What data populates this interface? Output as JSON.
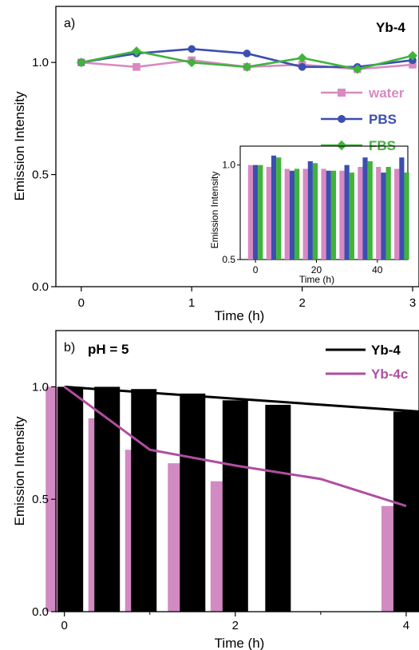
{
  "colors": {
    "water": "#d889c2",
    "pbs": "#3b4fb0",
    "fbs": "#3fb43b",
    "yb4": "#000000",
    "yb4c_line": "#b04ea0",
    "yb4c_bar": "#d28ac3"
  },
  "chart_data": [
    {
      "type": "line",
      "panel_label": "a)",
      "title": "Yb-4",
      "xlabel": "Time (h)",
      "ylabel": "Emission Intensity",
      "xlim": [
        -0.1,
        3.0
      ],
      "ylim": [
        0.0,
        1.25
      ],
      "xticks": [
        "0",
        "1",
        "2",
        "3"
      ],
      "yticks": [
        "0.0",
        "0.5",
        "1.0"
      ],
      "x": [
        0,
        0.5,
        1,
        1.5,
        2,
        2.5,
        3
      ],
      "series": [
        {
          "name": "water",
          "color_key": "water",
          "marker": "square",
          "values": [
            1.0,
            0.98,
            1.01,
            0.98,
            0.99,
            0.97,
            0.99
          ]
        },
        {
          "name": "PBS",
          "color_key": "pbs",
          "marker": "circle",
          "values": [
            1.0,
            1.04,
            1.06,
            1.04,
            0.98,
            0.98,
            1.01
          ]
        },
        {
          "name": "FBS",
          "color_key": "fbs",
          "marker": "diamond",
          "values": [
            1.0,
            1.05,
            1.0,
            0.98,
            1.02,
            0.97,
            1.03
          ]
        }
      ],
      "legend": "right",
      "inset": {
        "type": "bar",
        "xlabel": "Time (h)",
        "ylabel": "Emission Intensity",
        "xlim": [
          -5,
          50
        ],
        "ylim": [
          0.5,
          1.1
        ],
        "xticks": [
          "0",
          "20",
          "40"
        ],
        "yticks": [
          "0.5",
          "1.0"
        ],
        "x": [
          0,
          6,
          12,
          18,
          24,
          30,
          36,
          42,
          48
        ],
        "series": [
          {
            "name": "water",
            "color_key": "water",
            "values": [
              1.0,
              0.99,
              0.98,
              0.98,
              0.98,
              0.97,
              0.99,
              0.99,
              0.98
            ]
          },
          {
            "name": "PBS",
            "color_key": "pbs",
            "values": [
              1.0,
              1.05,
              0.97,
              1.02,
              0.97,
              1.0,
              1.04,
              0.96,
              1.04
            ]
          },
          {
            "name": "FBS",
            "color_key": "fbs",
            "values": [
              1.0,
              1.04,
              0.98,
              1.01,
              0.97,
              0.96,
              1.02,
              0.99,
              0.96
            ]
          }
        ]
      }
    },
    {
      "type": "bar",
      "panel_label": "b)",
      "annotation": "pH = 5",
      "xlabel": "Time (h)",
      "ylabel": "Emission Intensity",
      "xlim": [
        -0.1,
        4.15
      ],
      "ylim": [
        0.0,
        1.25
      ],
      "xticks": [
        "0",
        "2",
        "4"
      ],
      "yticks": [
        "0.0",
        "0.5",
        "1.0"
      ],
      "series": [
        {
          "name": "Yb-4",
          "color_key": "yb4",
          "bar_x": [
            0.07,
            0.5,
            0.93,
            1.5,
            2.0,
            2.5,
            4.0
          ],
          "values": [
            1.0,
            1.0,
            0.99,
            0.97,
            0.94,
            0.92,
            0.89
          ],
          "line_x": [
            0.0,
            4.15
          ],
          "line_values": [
            1.0,
            0.89
          ]
        },
        {
          "name": "Yb-4c",
          "color_key": "yb4c_line",
          "bar_color_key": "yb4c_bar",
          "bar_x": [
            -0.07,
            0.43,
            0.86,
            1.36,
            1.86,
            3.86
          ],
          "values": [
            1.0,
            0.86,
            0.72,
            0.66,
            0.58,
            0.47
          ],
          "line_x": [
            0,
            0.5,
            1,
            2,
            3,
            4
          ],
          "line_values": [
            1.0,
            0.86,
            0.72,
            0.65,
            0.59,
            0.47
          ]
        }
      ],
      "legend": "top-right"
    }
  ]
}
